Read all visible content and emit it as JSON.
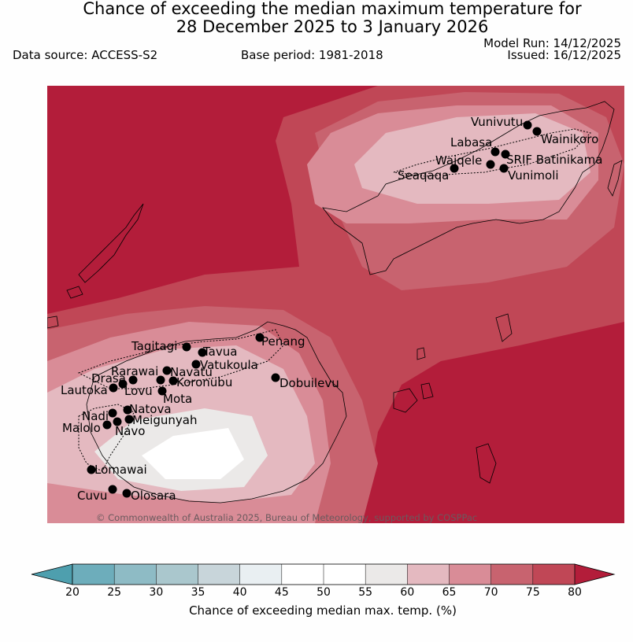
{
  "title_line1": "Chance of exceeding the median maximum temperature for",
  "title_line2": "28 December 2025 to 3 January 2026",
  "data_source": "Data source: ACCESS-S2",
  "base_period": "Base period: 1981-2018",
  "model_run": "Model Run: 14/12/2025",
  "issued": "Issued: 16/12/2025",
  "copyright": "© Commonwealth of Australia 2025, Bureau of Meteorology, supported by COSPPac",
  "colorbar": {
    "label": "Chance of exceeding median max. temp. (%)",
    "ticks": [
      "20",
      "25",
      "30",
      "35",
      "40",
      "45",
      "50",
      "55",
      "60",
      "65",
      "70",
      "75",
      "80"
    ],
    "colors": [
      "#6dadbb",
      "#8ebbc5",
      "#aac7cd",
      "#c8d5da",
      "#e9eff2",
      "#ffffff",
      "#ffffff",
      "#ebe9e8",
      "#e4b9c0",
      "#d98c97",
      "#c8636f",
      "#c04756"
    ],
    "under_color": "#4e9fae",
    "over_color": "#b31d3a"
  },
  "stations": [
    {
      "name": "Vunivutu"
    },
    {
      "name": "Wainikoro"
    },
    {
      "name": "Labasa"
    },
    {
      "name": "SRIF Batinikama"
    },
    {
      "name": "Waiqele"
    },
    {
      "name": "Vunimoli"
    },
    {
      "name": "Seaqaqa"
    },
    {
      "name": "Tagitagi"
    },
    {
      "name": "Tavua"
    },
    {
      "name": "Penang"
    },
    {
      "name": "Vatukoula"
    },
    {
      "name": "Dobuilevu"
    },
    {
      "name": "Rarawai"
    },
    {
      "name": "Navatu"
    },
    {
      "name": "Koronubu"
    },
    {
      "name": "Drasa"
    },
    {
      "name": "Lautoka"
    },
    {
      "name": "Lovu"
    },
    {
      "name": "Mota"
    },
    {
      "name": "Natova"
    },
    {
      "name": "Nadi"
    },
    {
      "name": "Meigunyah"
    },
    {
      "name": "Malolo"
    },
    {
      "name": "Navo"
    },
    {
      "name": "Lomawai"
    },
    {
      "name": "Cuvu"
    },
    {
      "name": "Olosara"
    }
  ]
}
